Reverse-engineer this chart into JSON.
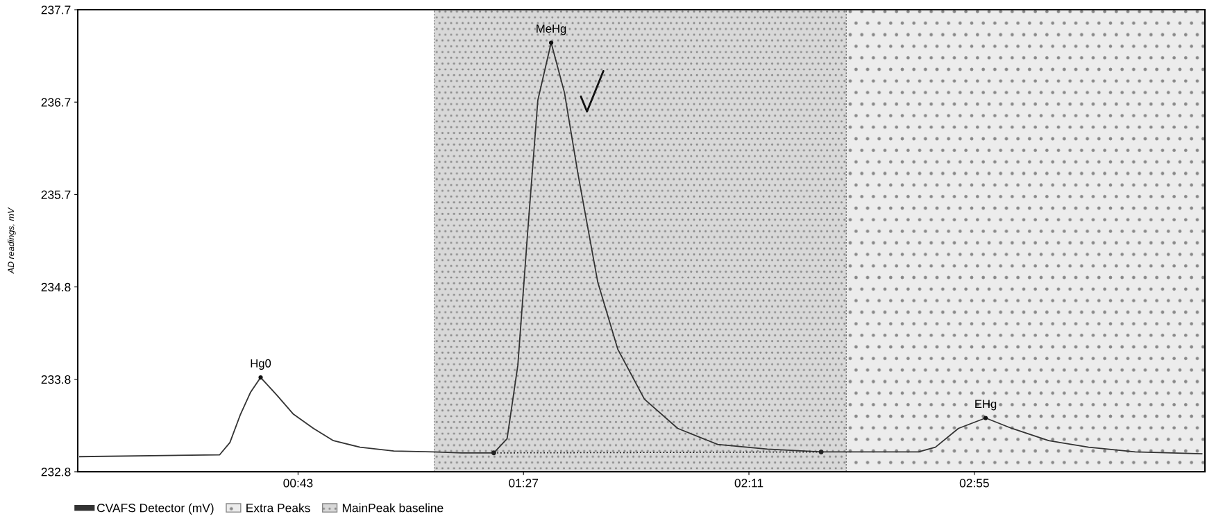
{
  "chart_data": {
    "type": "line",
    "ylabel": "AD readings, mV",
    "xlim": [
      0,
      220
    ],
    "ylim": [
      232.8,
      237.7
    ],
    "xticks": [
      {
        "value": 43,
        "label": "00:43"
      },
      {
        "value": 87,
        "label": "01:27"
      },
      {
        "value": 131,
        "label": "02:11"
      },
      {
        "value": 175,
        "label": "02:55"
      }
    ],
    "yticks": [
      {
        "value": 232.8,
        "label": "232.8"
      },
      {
        "value": 233.78,
        "label": "233.8"
      },
      {
        "value": 234.76,
        "label": "234.8"
      },
      {
        "value": 235.74,
        "label": "235.7"
      },
      {
        "value": 236.72,
        "label": "236.7"
      },
      {
        "value": 237.7,
        "label": "237.7"
      }
    ],
    "grid": false,
    "legend": "bottom left",
    "series": [
      {
        "name": "CVAFS Detector (mV)",
        "color": "#333333",
        "line_style": "solid",
        "x": [
          0.4,
          27.7,
          29.7,
          31.7,
          33.7,
          35.7,
          38.9,
          42.1,
          46.0,
          49.9,
          55.1,
          61.7,
          69.4,
          75.0,
          81.2,
          83.8,
          85.9,
          87.8,
          89.8,
          92.4,
          95.0,
          97.6,
          101.5,
          105.4,
          110.6,
          117.1,
          124.9,
          134.6,
          145.1,
          160.7,
          164.1,
          167.4,
          171.9,
          177.2,
          182.3,
          189.5,
          197.3,
          206.4,
          219.4
        ],
        "values": [
          232.96,
          232.98,
          233.11,
          233.4,
          233.64,
          233.8,
          233.61,
          233.41,
          233.26,
          233.13,
          233.06,
          233.02,
          233.01,
          233.0,
          233.0,
          233.15,
          233.93,
          235.33,
          236.74,
          237.35,
          236.82,
          235.97,
          234.81,
          234.1,
          233.57,
          233.26,
          233.09,
          233.04,
          233.01,
          233.01,
          233.01,
          233.06,
          233.26,
          233.37,
          233.26,
          233.13,
          233.06,
          233.01,
          232.99
        ]
      },
      {
        "color": "#222222",
        "line_style": "dotted",
        "marker": "circle",
        "x": [
          81.2,
          145.1
        ],
        "values": [
          233.0,
          233.01
        ]
      }
    ],
    "bands": [
      {
        "axis": "x",
        "from": 150.0,
        "to": 220.0,
        "label": "Extra Peaks",
        "color": "#ececec"
      },
      {
        "axis": "x",
        "from": 69.6,
        "to": 150.0,
        "label": "MainPeak baseline",
        "color": "#d8d8d8"
      }
    ],
    "annotations": [
      {
        "text": "Hg0",
        "x": 35.7,
        "y": 233.8
      },
      {
        "text": "MeHg",
        "x": 92.4,
        "y": 237.35
      },
      {
        "text": "EHg",
        "x": 177.2,
        "y": 233.37
      }
    ]
  }
}
